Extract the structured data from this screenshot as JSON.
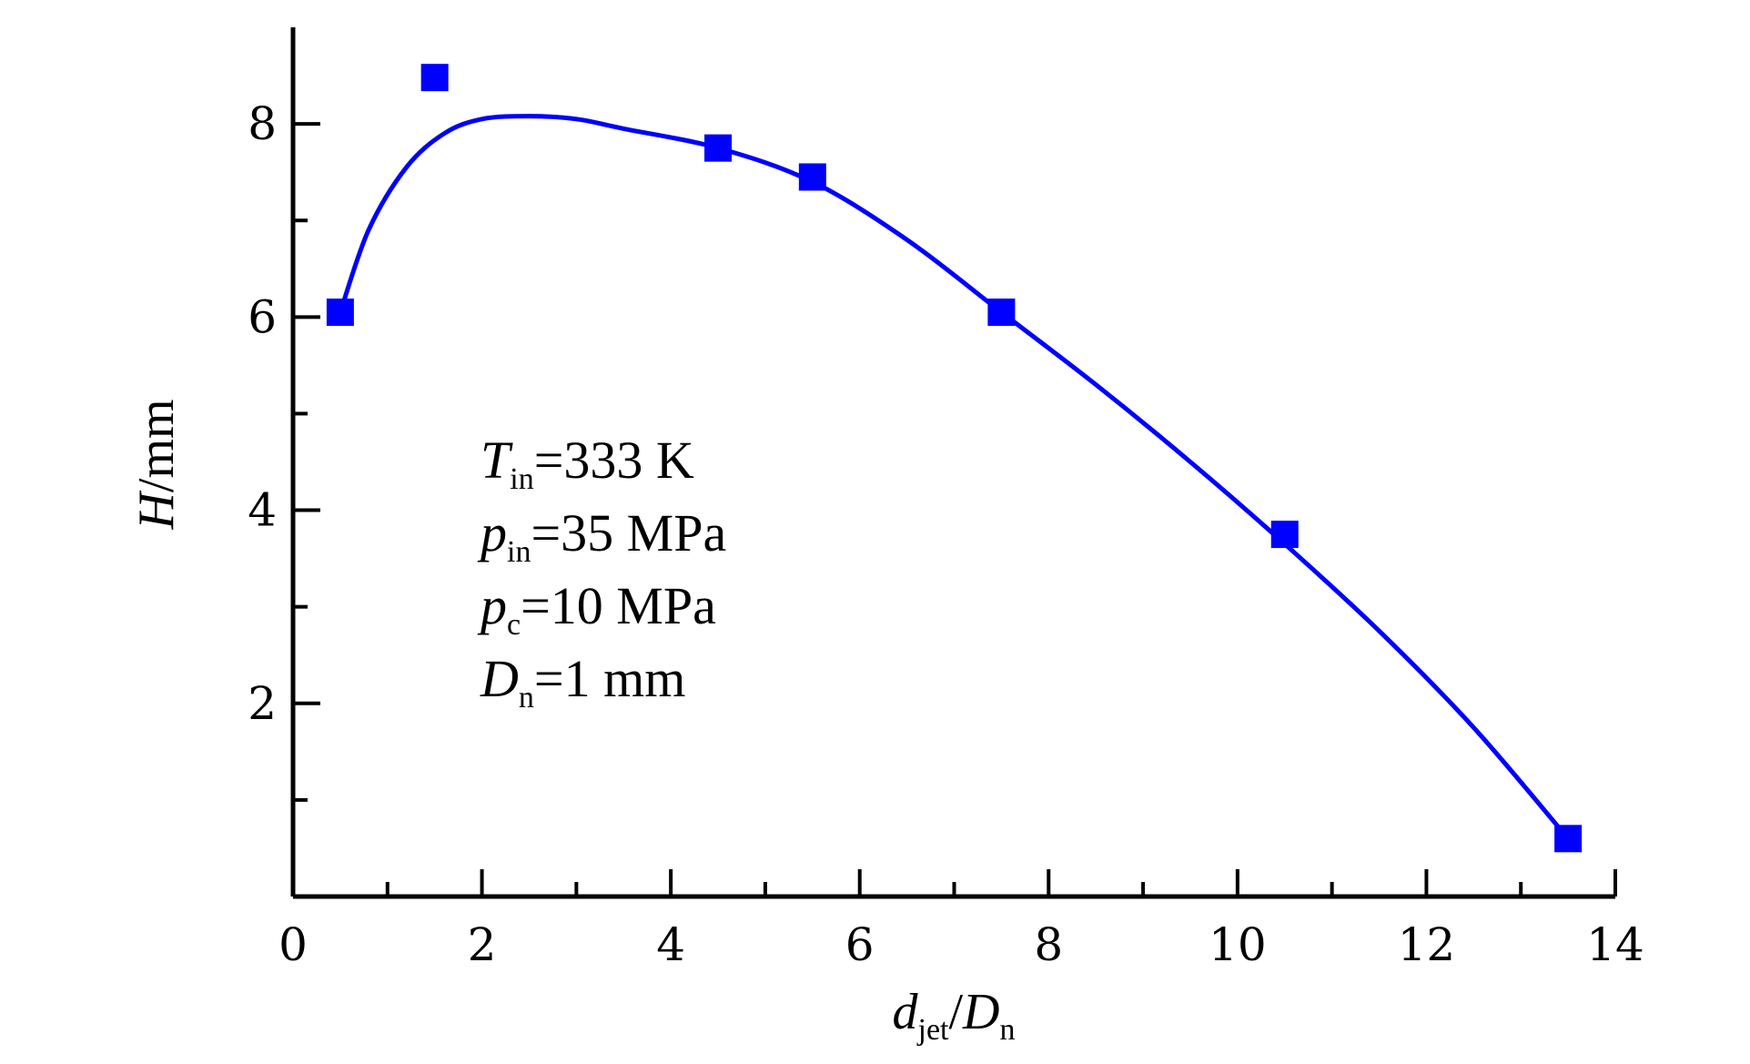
{
  "chart_data": {
    "type": "scatter",
    "title": "",
    "xlabel": {
      "main": "d",
      "main_sub": "jet",
      "sep": "/",
      "denom": "D",
      "denom_sub": "n"
    },
    "ylabel": {
      "main": "H",
      "unit": "/mm"
    },
    "xlim": [
      0,
      14
    ],
    "ylim": [
      0,
      9
    ],
    "xticks": [
      0,
      2,
      4,
      6,
      8,
      10,
      12,
      14
    ],
    "xtick_labels": [
      "0",
      "2",
      "4",
      "6",
      "8",
      "10",
      "12",
      "14"
    ],
    "xminor": [
      1,
      3,
      5,
      7,
      9,
      11,
      13
    ],
    "yticks": [
      2,
      4,
      6,
      8
    ],
    "ytick_labels": [
      "2",
      "4",
      "6",
      "8"
    ],
    "yminor": [
      1,
      3,
      5,
      7
    ],
    "grid": false,
    "series": [
      {
        "marker": "square",
        "color": "#0000ff",
        "x": [
          0.5,
          1.5,
          4.5,
          5.5,
          7.5,
          10.5,
          13.5
        ],
        "y": [
          6.05,
          8.48,
          7.75,
          7.45,
          6.05,
          3.75,
          0.6
        ]
      }
    ],
    "fit_curve": {
      "color": "#0000ff",
      "x": [
        0.5,
        0.8,
        1.2,
        1.6,
        2.0,
        2.5,
        3.0,
        3.5,
        4.5,
        5.5,
        6.5,
        7.5,
        8.5,
        9.5,
        10.5,
        11.5,
        12.5,
        13.5
      ],
      "y": [
        6.05,
        6.9,
        7.55,
        7.9,
        8.05,
        8.08,
        8.05,
        7.95,
        7.75,
        7.4,
        6.8,
        6.05,
        5.3,
        4.5,
        3.65,
        2.75,
        1.75,
        0.6
      ]
    },
    "annotations": [
      {
        "main": "T",
        "sub": "in",
        "rest": "=333 K"
      },
      {
        "main": "p",
        "sub": "in",
        "rest": "=35 MPa"
      },
      {
        "main": "p",
        "sub": "c",
        "rest": "=10 MPa"
      },
      {
        "main": "D",
        "sub": "n",
        "rest": "=1 mm"
      }
    ]
  }
}
